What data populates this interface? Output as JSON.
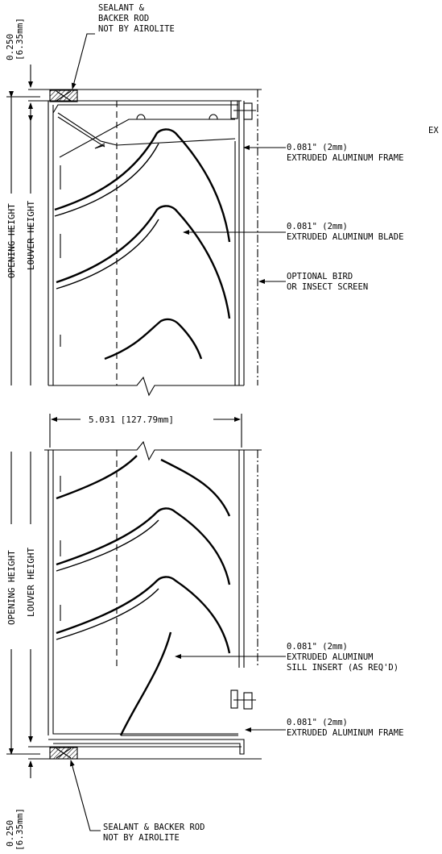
{
  "colors": {
    "ink": "#000000",
    "background": "#ffffff"
  },
  "top_section": {
    "sealant_note": [
      "SEALANT &",
      "BACKER ROD",
      "NOT BY AIROLITE"
    ],
    "gap_dim": [
      "0.250",
      "[6.35mm]"
    ],
    "opening_height": "OPENING HEIGHT",
    "louver_height": "LOUVER HEIGHT",
    "cut_label": "EX",
    "frame_callout": [
      "0.081\" (2mm)",
      "EXTRUDED ALUMINUM FRAME"
    ],
    "blade_callout": [
      "0.081\" (2mm)",
      "EXTRUDED ALUMINUM BLADE"
    ],
    "screen_callout": [
      "OPTIONAL BIRD",
      "OR INSECT SCREEN"
    ]
  },
  "bottom_section": {
    "depth_dim": "5.031 [127.79mm]",
    "opening_height": "OPENING HEIGHT",
    "louver_height": "LOUVER HEIGHT",
    "sill_callout": [
      "0.081\" (2mm)",
      "EXTRUDED ALUMINUM",
      "SILL INSERT (AS REQ'D)"
    ],
    "frame_callout": [
      "0.081\" (2mm)",
      "EXTRUDED ALUMINUM FRAME"
    ],
    "sealant_note": [
      "SEALANT & BACKER ROD",
      "NOT BY AIROLITE"
    ],
    "gap_dim": [
      "0.250",
      "[6.35mm]"
    ]
  }
}
